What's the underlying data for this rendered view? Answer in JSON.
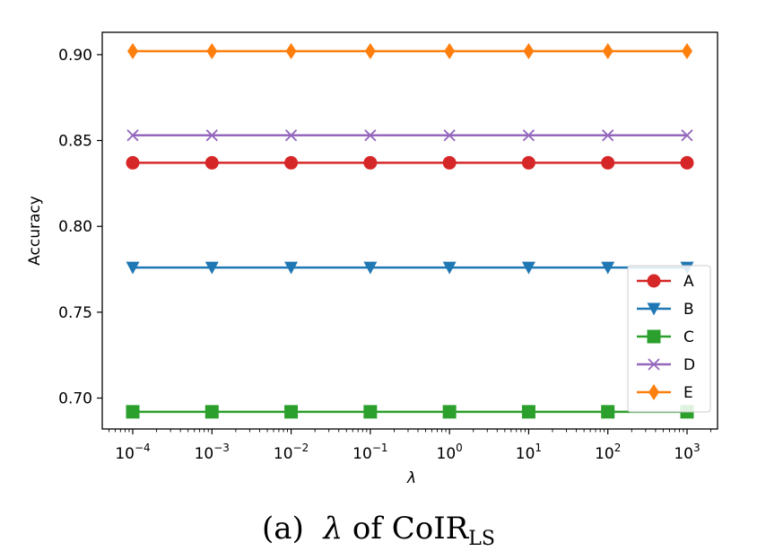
{
  "chart_data": {
    "type": "line",
    "title": "",
    "xlabel": "λ",
    "ylabel": "Accuracy",
    "x_scale": "log",
    "x": [
      0.0001,
      0.001,
      0.01,
      0.1,
      1,
      10,
      100,
      1000
    ],
    "x_tick_labels": [
      {
        "base": "10",
        "exp": "−4"
      },
      {
        "base": "10",
        "exp": "−3"
      },
      {
        "base": "10",
        "exp": "−2"
      },
      {
        "base": "10",
        "exp": "−1"
      },
      {
        "base": "10",
        "exp": "0"
      },
      {
        "base": "10",
        "exp": "1"
      },
      {
        "base": "10",
        "exp": "2"
      },
      {
        "base": "10",
        "exp": "3"
      }
    ],
    "y_ticks": [
      "0.70",
      "0.75",
      "0.80",
      "0.85",
      "0.90"
    ],
    "ylim": [
      0.682,
      0.913
    ],
    "grid": false,
    "legend_position": "lower-right",
    "series": [
      {
        "name": "A",
        "color": "#d62728",
        "marker": "circle",
        "values": [
          0.837,
          0.837,
          0.837,
          0.837,
          0.837,
          0.837,
          0.837,
          0.837
        ]
      },
      {
        "name": "B",
        "color": "#1f77b4",
        "marker": "triangle-down",
        "values": [
          0.776,
          0.776,
          0.776,
          0.776,
          0.776,
          0.776,
          0.776,
          0.776
        ]
      },
      {
        "name": "C",
        "color": "#2ca02c",
        "marker": "square",
        "values": [
          0.692,
          0.692,
          0.692,
          0.692,
          0.692,
          0.692,
          0.692,
          0.692
        ]
      },
      {
        "name": "D",
        "color": "#9467bd",
        "marker": "x",
        "values": [
          0.853,
          0.853,
          0.853,
          0.853,
          0.853,
          0.853,
          0.853,
          0.853
        ]
      },
      {
        "name": "E",
        "color": "#ff7f0e",
        "marker": "diamond",
        "values": [
          0.902,
          0.902,
          0.902,
          0.902,
          0.902,
          0.902,
          0.902,
          0.902
        ]
      }
    ]
  },
  "caption": {
    "prefix": "(a)",
    "symbol": "λ",
    "text": "of CoIR",
    "subscript": "LS"
  }
}
